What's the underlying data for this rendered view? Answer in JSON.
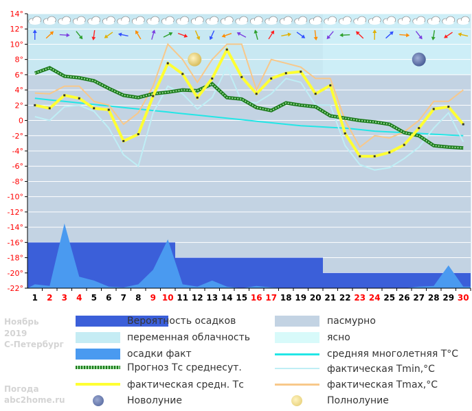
{
  "meta": {
    "month": "Ноябрь",
    "year": "2019",
    "city": "С-Петербург",
    "site_line1": "Погода",
    "site_line2": "abc2home.ru"
  },
  "legend": {
    "precip_prob": "Вероятность осадков",
    "overcast": "пасмурно",
    "variable_cloud": "переменная облачность",
    "clear": "ясно",
    "precip_fact": "осадки факт",
    "longterm_avg": "средняя многолетняя T°C",
    "forecast_avg": "Прогноз Тс среднесут.",
    "fact_tmin": "фактическая Tmin,°C",
    "fact_avg": "фактическая средн. Тс",
    "fact_tmax": "фактическая Tmax,°C",
    "new_moon": "Новолуние",
    "full_moon": "Полнолуние"
  },
  "colors": {
    "overcast": "#c3d3e3",
    "variable": "#c5ecf4",
    "clear": "#d8fafa",
    "precip_prob": "#3b5fd9",
    "precip_fact": "#4a9af0",
    "longterm": "#22e6e6",
    "forecast": "#2e8b2e",
    "tmin": "#bfeef5",
    "fact_avg": "#ffff33",
    "tmax": "#f8c88a",
    "new_moon": "#6b7fb0",
    "full_moon": "#f0e090",
    "weekend": "#ff0000",
    "weekday": "#000000"
  },
  "chart_data": {
    "type": "line",
    "ylim": [
      -22,
      14
    ],
    "y_ticks": [
      14,
      12,
      10,
      8,
      6,
      4,
      2,
      0,
      -2,
      -4,
      -6,
      -8,
      -10,
      -12,
      -14,
      -16,
      -18,
      -20,
      -22
    ],
    "y_tick_labels": [
      "14°",
      "12°",
      "10°",
      "8°",
      "6°",
      "4°",
      "2°",
      "0",
      "-2°",
      "-4°",
      "-6°",
      "-8°",
      "-10°",
      "-12°",
      "-14°",
      "-16°",
      "-18°",
      "-20°",
      "-22°"
    ],
    "days": [
      "1",
      "2",
      "3",
      "4",
      "5",
      "6",
      "7",
      "8",
      "9",
      "10",
      "11",
      "12",
      "13",
      "14",
      "15",
      "16",
      "17",
      "18",
      "19",
      "20",
      "21",
      "22",
      "23",
      "24",
      "25",
      "26",
      "27",
      "28",
      "29",
      "30"
    ],
    "weekend_days": [
      2,
      3,
      4,
      9,
      10,
      16,
      17,
      23,
      24,
      30
    ],
    "full_moon_day": 12,
    "new_moon_day": 27,
    "sky": [
      "overcast",
      "overcast",
      "overcast",
      "overcast",
      "overcast",
      "overcast",
      "overcast",
      "overcast",
      "overcast",
      "overcast",
      "overcast",
      "overcast",
      "overcast",
      "overcast",
      "overcast",
      "overcast",
      "overcast",
      "overcast",
      "overcast",
      "overcast",
      "overcast",
      "overcast",
      "overcast",
      "overcast",
      "overcast",
      "overcast",
      "overcast",
      "overcast",
      "overcast",
      "overcast"
    ],
    "precip_prob_levels": [
      {
        "from_day": 1,
        "to_day": 10,
        "value": -16
      },
      {
        "from_day": 11,
        "to_day": 20,
        "value": -18
      },
      {
        "from_day": 21,
        "to_day": 30,
        "value": -20
      }
    ],
    "series": [
      {
        "name": "фактическая средн. Тс",
        "values": [
          2.0,
          1.6,
          3.3,
          2.9,
          1.6,
          1.4,
          -2.7,
          -1.8,
          3.2,
          7.5,
          6.1,
          3.0,
          5.5,
          9.3,
          5.7,
          3.5,
          5.5,
          6.2,
          6.4,
          3.5,
          4.6,
          -1.7,
          -4.7,
          -4.7,
          -4.2,
          -3.2,
          -1.0,
          1.5,
          1.8,
          -0.5
        ]
      },
      {
        "name": "фактическая Tmax,°C",
        "values": [
          3.6,
          3.5,
          4.5,
          4.5,
          2.5,
          2.0,
          -0.5,
          1.0,
          4.5,
          10.0,
          8.0,
          5.0,
          8.0,
          10.0,
          10.0,
          4.0,
          8.0,
          7.5,
          7.0,
          5.5,
          5.5,
          0.0,
          -3.5,
          -2.0,
          -2.3,
          -1.5,
          0.0,
          2.5,
          2.5,
          4.0
        ]
      },
      {
        "name": "фактическая Tmin,°C",
        "values": [
          0.5,
          0.0,
          1.8,
          2.0,
          1.2,
          -1.0,
          -4.5,
          -6.0,
          1.0,
          4.5,
          3.5,
          1.5,
          3.0,
          7.0,
          2.5,
          2.3,
          3.5,
          5.5,
          5.0,
          2.0,
          2.0,
          -3.3,
          -5.8,
          -6.5,
          -6.2,
          -5.0,
          -3.5,
          -1.0,
          1.0,
          -2.8
        ]
      },
      {
        "name": "Прогноз Тс среднесут.",
        "values": [
          6.2,
          6.9,
          5.8,
          5.6,
          5.2,
          4.2,
          3.3,
          3.0,
          3.5,
          3.7,
          4.0,
          3.9,
          4.8,
          3.0,
          2.8,
          1.7,
          1.3,
          2.3,
          2.0,
          1.8,
          0.6,
          0.3,
          0.0,
          -0.2,
          -0.5,
          -1.6,
          -2.0,
          -3.3,
          -3.5,
          -3.6
        ]
      },
      {
        "name": "средняя многолетняя T°C",
        "values": [
          2.9,
          2.7,
          2.5,
          2.3,
          2.1,
          1.9,
          1.7,
          1.5,
          1.3,
          1.1,
          0.9,
          0.7,
          0.5,
          0.3,
          0.1,
          -0.1,
          -0.3,
          -0.5,
          -0.7,
          -0.8,
          -0.9,
          -1.0,
          -1.2,
          -1.4,
          -1.5,
          -1.6,
          -1.7,
          -1.8,
          -1.9,
          -2.0
        ]
      }
    ],
    "precip_fact": [
      -21.5,
      -21.7,
      -13.5,
      -20.5,
      -21.0,
      -21.8,
      -21.9,
      -21.5,
      -19.6,
      -15.6,
      -21.5,
      -21.8,
      -21.0,
      -21.8,
      -22.0,
      -21.7,
      -21.9,
      -22.0,
      -22.0,
      -22.0,
      -22.0,
      -22.0,
      -22.0,
      -22.0,
      -22.0,
      -22.0,
      -21.8,
      -21.7,
      -19.0,
      -21.8
    ]
  }
}
